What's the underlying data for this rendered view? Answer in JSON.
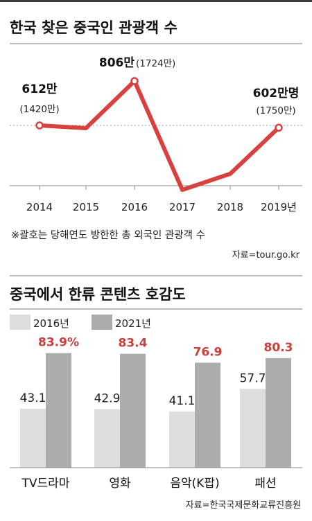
{
  "chart_data": [
    {
      "type": "line",
      "title": "한국 찾은 중국인 관광객 수",
      "x_labels": [
        "2014",
        "2015",
        "2016",
        "2017",
        "2018",
        "2019년"
      ],
      "values": [
        612,
        600,
        806,
        330,
        400,
        602
      ],
      "points": [
        {
          "main": "612만",
          "sub": "(1420만)"
        },
        null,
        {
          "main": "806만",
          "sub": "(1724만)"
        },
        null,
        null,
        {
          "main": "602만명",
          "sub": "(1750만)"
        }
      ],
      "note": "※괄호는 당해연도 방한한 총 외국인 관광객 수",
      "source": "자료=tour.go.kr",
      "color": "#d9413f"
    },
    {
      "type": "bar",
      "title": "중국에서 한류 콘텐츠 호감도",
      "categories": [
        "TV드라마",
        "영화",
        "음악(K팝)",
        "패션"
      ],
      "series": [
        {
          "name": "2016년",
          "values": [
            43.1,
            42.9,
            41.1,
            57.7
          ],
          "labels": [
            "43.1",
            "42.9",
            "41.1",
            "57.7"
          ],
          "color": "#dddddd"
        },
        {
          "name": "2021년",
          "values": [
            83.9,
            83.4,
            76.9,
            80.3
          ],
          "labels": [
            "83.9%",
            "83.4",
            "76.9",
            "80.3"
          ],
          "color": "#acacac"
        }
      ],
      "highlight_color": "#c8403f",
      "source": "자료=한국국제문화교류진흥원"
    }
  ]
}
